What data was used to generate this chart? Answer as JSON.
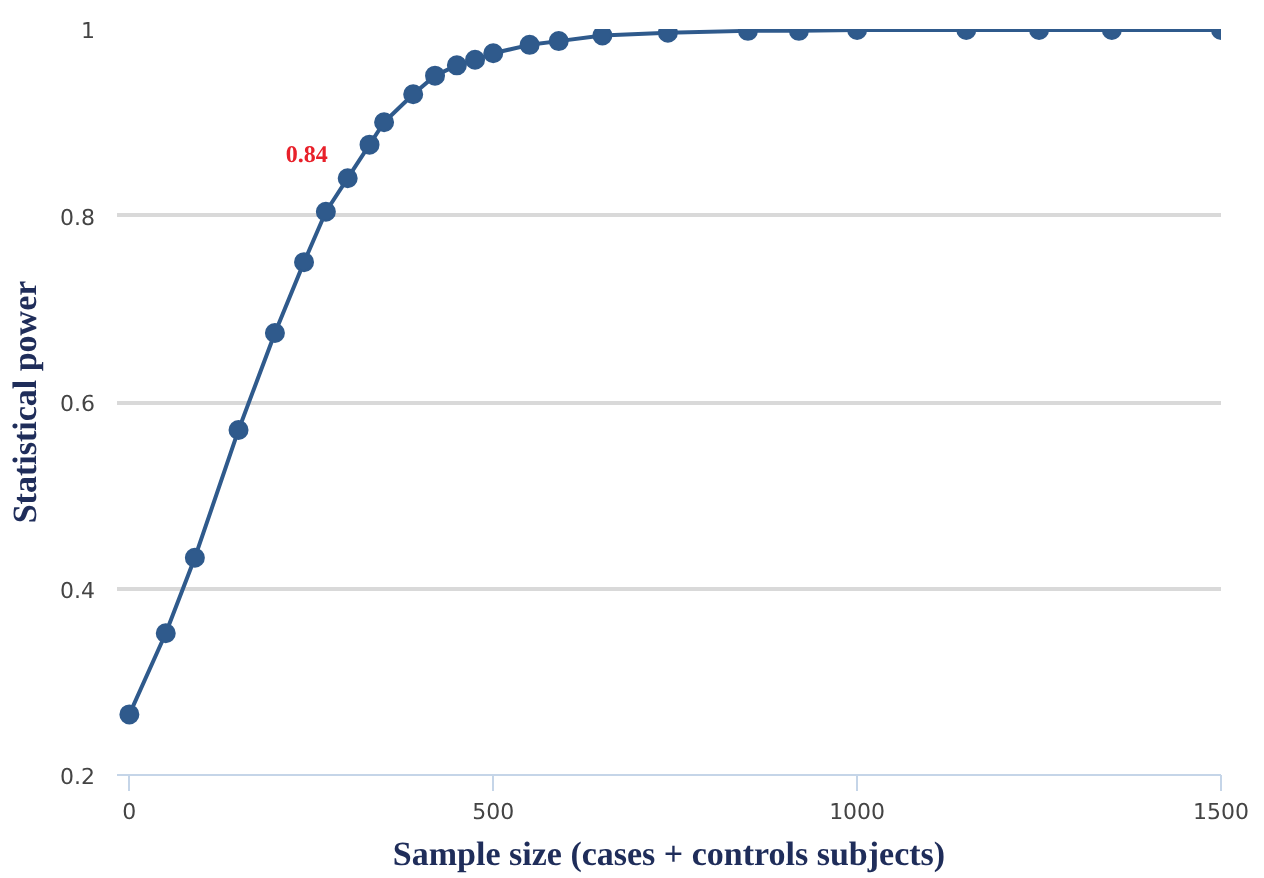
{
  "chart_data": {
    "type": "line",
    "xlabel": "Sample size (cases + controls subjects)",
    "ylabel": "Statistical power",
    "x": [
      0,
      50,
      90,
      150,
      200,
      240,
      270,
      300,
      330,
      350,
      390,
      420,
      450,
      475,
      500,
      550,
      590,
      650,
      740,
      850,
      920,
      1000,
      1150,
      1250,
      1350,
      1500
    ],
    "series": [
      {
        "color": "#2f5a8c",
        "values": [
          0.265,
          0.352,
          0.433,
          0.57,
          0.674,
          0.75,
          0.804,
          0.84,
          0.876,
          0.9,
          0.93,
          0.95,
          0.961,
          0.967,
          0.974,
          0.983,
          0.987,
          0.993,
          0.996,
          0.998,
          0.998,
          0.999,
          0.999,
          0.999,
          0.999,
          0.999
        ]
      }
    ],
    "annotations": [
      {
        "text": "0.84",
        "x": 300,
        "y": 0.84
      }
    ],
    "xlim": [
      -17,
      1500
    ],
    "xticks": [
      0,
      500,
      1000,
      1500
    ],
    "ylim": [
      0.2,
      1.0
    ],
    "yticks": [
      0.2,
      0.4,
      0.6,
      0.8,
      {
        "value": 1.0,
        "label": "1"
      }
    ],
    "grid": "y",
    "marker": "circle",
    "line_style": "solid"
  }
}
